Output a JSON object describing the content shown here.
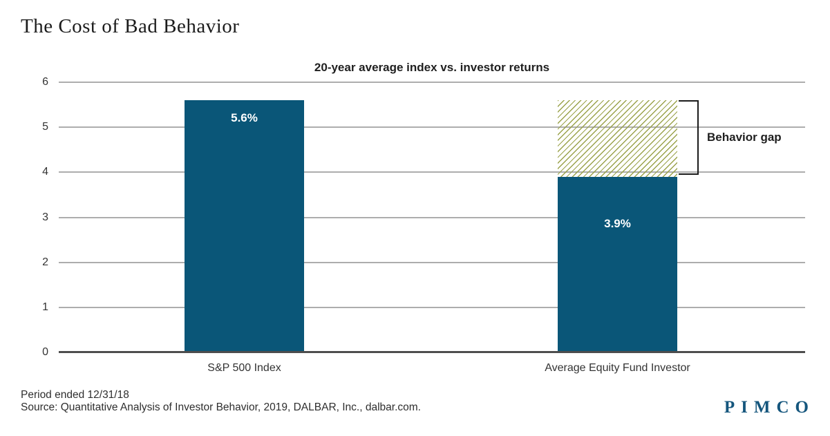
{
  "page": {
    "title": "The Cost of Bad Behavior",
    "footnote_line1": "Period ended 12/31/18",
    "footnote_line2": "Source: Quantitative Analysis of Investor Behavior, 2019, DALBAR, Inc., dalbar.com.",
    "brand": "PIMCO"
  },
  "colors": {
    "bar": "#0a5678",
    "hatch": "#9aa24a",
    "gridline": "#adadad",
    "baseline": "#4d4d4d",
    "brand_blue": "#15567d"
  },
  "chart_data": {
    "type": "bar",
    "title": "20-year average index vs. investor returns",
    "categories": [
      "S&P 500 Index",
      "Average Equity Fund Investor"
    ],
    "values": [
      5.6,
      3.9
    ],
    "value_labels": [
      "5.6%",
      "3.9%"
    ],
    "ylim": [
      0,
      6
    ],
    "yticks": [
      0,
      1,
      2,
      3,
      4,
      5,
      6
    ],
    "grid": true,
    "legend": "none",
    "annotation": {
      "label": "Behavior gap",
      "from": 3.9,
      "to": 5.6,
      "style": "hatched-area-with-bracket",
      "applies_to_category": "Average Equity Fund Investor"
    }
  }
}
